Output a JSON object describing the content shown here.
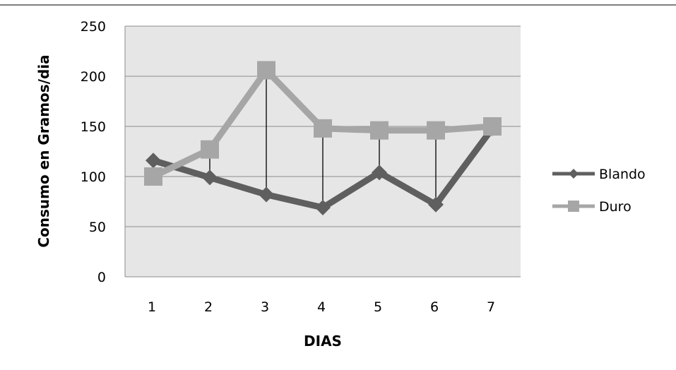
{
  "chart_data": {
    "type": "line",
    "title": "",
    "xlabel": "DIAS",
    "ylabel": "Consumo en Gramos/dia",
    "categories": [
      "1",
      "2",
      "3",
      "4",
      "5",
      "6",
      "7"
    ],
    "ylim": [
      0,
      250
    ],
    "yticks": [
      0,
      50,
      100,
      150,
      200,
      250
    ],
    "grid": true,
    "legend_position": "right",
    "series": [
      {
        "name": "Blando",
        "values": [
          116,
          99,
          82,
          69,
          104,
          72,
          148
        ],
        "color": "#5f5f5f",
        "marker": "diamond"
      },
      {
        "name": "Duro",
        "values": [
          100,
          127,
          206,
          148,
          146,
          146,
          150
        ],
        "color": "#a6a6a6",
        "marker": "square"
      }
    ],
    "high_low_lines": true,
    "plot_area_color": "#e6e6e6",
    "gridline_color": "#8c8c8c"
  }
}
